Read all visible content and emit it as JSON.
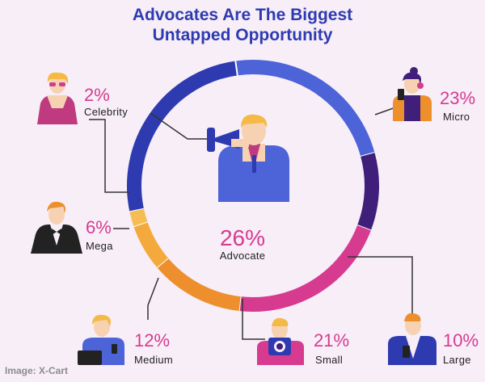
{
  "chart_data": {
    "type": "pie",
    "style": "donut",
    "title_lines": [
      "Advocates Are The Biggest",
      "Untapped Opportunity"
    ],
    "center": {
      "percent": "26%",
      "label": "Advocate"
    },
    "slices": [
      {
        "label": "Micro",
        "percent": "23%",
        "value": 23,
        "color": "#4d63d8"
      },
      {
        "label": "Large",
        "percent": "10%",
        "value": 10,
        "color": "#3f1f7a"
      },
      {
        "label": "Small",
        "percent": "21%",
        "value": 21,
        "color": "#d63b8f"
      },
      {
        "label": "Medium",
        "percent": "12%",
        "value": 12,
        "color": "#ee8f2e"
      },
      {
        "label": "Mega",
        "percent": "6%",
        "value": 6,
        "color": "#f3a93b"
      },
      {
        "label": "Celebrity",
        "percent": "2%",
        "value": 2,
        "color": "#f6bd54"
      },
      {
        "label": "Advocate",
        "percent": "26%",
        "value": 26,
        "color": "#2e3bb0"
      }
    ]
  },
  "caption": "Image: X-Cart",
  "icons": {
    "micro": "influencer-selfie-icon",
    "large": "influencer-phone-icon",
    "small": "influencer-camera-icon",
    "medium": "influencer-laptop-icon",
    "mega": "influencer-tuxedo-icon",
    "celebrity": "celebrity-sunglasses-icon",
    "advocate": "advocate-megaphone-icon"
  }
}
